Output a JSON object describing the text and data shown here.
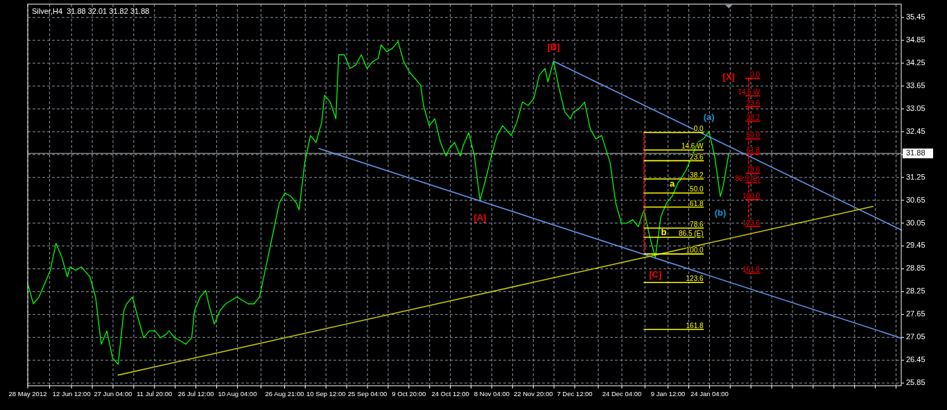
{
  "chart_data": {
    "type": "line",
    "title": "Silver,H4  31.88 32.01 31.82 31.88",
    "xlim": [
      "2012-05-28",
      "2013-04-02"
    ],
    "ylim": [
      25.78,
      35.8
    ],
    "xticks": [
      {
        "value": "2012-05-28",
        "label": "28 May 2012"
      },
      {
        "value": "2012-06-04T18:00",
        "label": null
      },
      {
        "value": "2012-06-12T12:00",
        "label": "12 Jun 12:00"
      },
      {
        "value": "2012-06-19T20:00",
        "label": null
      },
      {
        "value": "2012-06-27T04:00",
        "label": "27 Jun 04:00"
      },
      {
        "value": "2012-07-04T12:00",
        "label": null
      },
      {
        "value": "2012-07-11T20:00",
        "label": "11 Jul 20:00"
      },
      {
        "value": "2012-07-19T04:00",
        "label": null
      },
      {
        "value": "2012-07-26T12:00",
        "label": "26 Jul 12:00"
      },
      {
        "value": "2012-08-02T20:00",
        "label": null
      },
      {
        "value": "2012-08-10T04:00",
        "label": "10 Aug 04:00"
      },
      {
        "value": "2012-08-18T12:00",
        "label": null
      },
      {
        "value": "2012-08-26T21:00",
        "label": "26 Aug 21:00"
      },
      {
        "value": "2012-09-03T04:00",
        "label": null
      },
      {
        "value": "2012-09-10T12:00",
        "label": "10 Sep 12:00"
      },
      {
        "value": "2012-09-17T20:00",
        "label": null
      },
      {
        "value": "2012-09-25T04:00",
        "label": "25 Sep 04:00"
      },
      {
        "value": "2012-10-02T12:00",
        "label": null
      },
      {
        "value": "2012-10-09T20:00",
        "label": "9 Oct 20:00"
      },
      {
        "value": "2012-10-17T04:00",
        "label": null
      },
      {
        "value": "2012-10-24T12:00",
        "label": "24 Oct 12:00"
      },
      {
        "value": "2012-10-31T20:00",
        "label": null
      },
      {
        "value": "2012-11-08T04:00",
        "label": "8 Nov 04:00"
      },
      {
        "value": "2012-11-15T12:00",
        "label": null
      },
      {
        "value": "2012-11-22T20:00",
        "label": "22 Nov 20:00"
      },
      {
        "value": "2012-11-30T04:00",
        "label": null
      },
      {
        "value": "2012-12-07T12:00",
        "label": "7 Dec 12:00"
      },
      {
        "value": "2012-12-15T20:00",
        "label": null
      },
      {
        "value": "2012-12-24T04:00",
        "label": "24 Dec 04:00"
      },
      {
        "value": "2013-01-01T08:00",
        "label": null
      },
      {
        "value": "2013-01-09T12:00",
        "label": "9 Jan 12:00"
      },
      {
        "value": "2013-01-16T20:00",
        "label": null
      },
      {
        "value": "2013-01-24T04:00",
        "label": "24 Jan 04:00"
      },
      {
        "value": "2013-01-31T12:00",
        "label": null
      },
      {
        "value": "2013-02-07T20:00",
        "label": null
      },
      {
        "value": "2013-02-15T04:00",
        "label": null
      },
      {
        "value": "2013-02-22T12:00",
        "label": null
      },
      {
        "value": "2013-03-01T20:00",
        "label": null
      },
      {
        "value": "2013-03-09T04:00",
        "label": null
      },
      {
        "value": "2013-03-16T12:00",
        "label": null
      },
      {
        "value": "2013-03-23T20:00",
        "label": null
      },
      {
        "value": "2013-03-31T04:00",
        "label": null
      }
    ],
    "yticks": [
      25.85,
      26.45,
      27.05,
      27.65,
      28.25,
      28.85,
      29.45,
      30.05,
      30.65,
      31.25,
      {
        "value": 31.85,
        "label": null
      },
      32.45,
      33.05,
      33.65,
      34.25,
      34.85,
      35.45
    ],
    "grid": true,
    "series": [
      {
        "color": "#00ff00",
        "x": [
          "2012-05-28",
          "2012-05-30",
          "2012-06-01",
          "2012-06-03",
          "2012-06-05",
          "2012-06-07",
          "2012-06-09",
          "2012-06-11",
          "2012-06-12",
          "2012-06-14",
          "2012-06-16",
          "2012-06-17",
          "2012-06-19",
          "2012-06-21",
          "2012-06-23",
          "2012-06-25",
          "2012-06-27",
          "2012-06-29",
          "2012-07-01",
          "2012-07-02",
          "2012-07-04",
          "2012-07-06",
          "2012-07-08",
          "2012-07-10",
          "2012-07-12",
          "2012-07-14",
          "2012-07-16",
          "2012-07-17",
          "2012-07-19",
          "2012-07-21",
          "2012-07-23",
          "2012-07-25",
          "2012-07-26",
          "2012-07-28",
          "2012-07-30",
          "2012-07-31",
          "2012-08-02",
          "2012-08-04",
          "2012-08-06",
          "2012-08-08",
          "2012-08-10",
          "2012-08-12",
          "2012-08-14",
          "2012-08-16",
          "2012-08-18",
          "2012-08-20",
          "2012-08-23",
          "2012-08-25",
          "2012-08-27",
          "2012-08-29",
          "2012-08-31",
          "2012-09-01",
          "2012-09-03",
          "2012-09-05",
          "2012-09-07",
          "2012-09-09",
          "2012-09-10",
          "2012-09-12",
          "2012-09-14",
          "2012-09-15",
          "2012-09-17",
          "2012-09-19",
          "2012-09-21",
          "2012-09-23",
          "2012-09-25",
          "2012-09-27",
          "2012-09-29",
          "2012-09-30",
          "2012-10-02",
          "2012-10-04",
          "2012-10-06",
          "2012-10-08",
          "2012-10-10",
          "2012-10-12",
          "2012-10-14",
          "2012-10-15",
          "2012-10-17",
          "2012-10-19",
          "2012-10-21",
          "2012-10-23",
          "2012-10-24",
          "2012-10-26",
          "2012-10-28",
          "2012-10-29",
          "2012-10-31",
          "2012-11-02",
          "2012-11-04",
          "2012-11-06",
          "2012-11-08",
          "2012-11-10",
          "2012-11-12",
          "2012-11-13",
          "2012-11-15",
          "2012-11-17",
          "2012-11-19",
          "2012-11-21",
          "2012-11-23",
          "2012-11-25",
          "2012-11-27",
          "2012-11-28",
          "2012-11-30",
          "2012-12-02",
          "2012-12-04",
          "2012-12-06",
          "2012-12-07",
          "2012-12-09",
          "2012-12-11",
          "2012-12-13",
          "2012-12-15",
          "2012-12-17",
          "2012-12-20",
          "2012-12-22",
          "2012-12-24",
          "2012-12-26",
          "2012-12-28",
          "2012-12-30",
          "2013-01-01",
          "2013-01-03",
          "2013-01-05",
          "2013-01-07",
          "2013-01-09",
          "2013-01-11",
          "2013-01-13",
          "2013-01-14",
          "2013-01-16",
          "2013-01-18",
          "2013-01-20",
          "2013-01-22",
          "2013-01-24",
          "2013-01-26",
          "2013-01-28",
          "2013-01-29",
          "2013-01-31"
        ],
        "values": [
          28.46,
          27.93,
          28.11,
          28.46,
          28.81,
          29.52,
          29.17,
          28.64,
          28.9,
          28.81,
          28.9,
          28.81,
          28.64,
          28.11,
          26.87,
          27.22,
          26.51,
          26.34,
          27.75,
          27.93,
          28.11,
          27.57,
          27.04,
          27.22,
          27.22,
          27.04,
          27.13,
          27.22,
          27.04,
          26.96,
          26.87,
          27.04,
          27.75,
          28.11,
          28.28,
          27.93,
          27.4,
          27.75,
          27.93,
          28.02,
          28.11,
          28.02,
          27.93,
          27.93,
          28.11,
          28.81,
          29.87,
          30.58,
          30.84,
          30.76,
          30.58,
          30.4,
          31.64,
          32.35,
          32.17,
          32.7,
          33.41,
          33.23,
          32.79,
          34.47,
          34.47,
          34.11,
          34.2,
          34.47,
          34.11,
          34.29,
          34.38,
          34.73,
          34.55,
          34.64,
          34.82,
          34.29,
          34.02,
          33.85,
          33.67,
          33.14,
          32.61,
          32.79,
          32.17,
          31.81,
          31.99,
          32.17,
          31.81,
          32.08,
          32.43,
          31.81,
          30.65,
          31.2,
          31.81,
          32.35,
          32.61,
          32.52,
          32.35,
          32.7,
          33.23,
          33.14,
          33.32,
          33.94,
          34.11,
          33.76,
          34.3,
          33.58,
          32.96,
          32.79,
          32.96,
          33.05,
          33.23,
          32.52,
          32.26,
          32.35,
          31.64,
          30.58,
          30.05,
          30.05,
          30.14,
          29.96,
          30.4,
          29.7,
          29.15,
          30.23,
          30.58,
          30.76,
          31.11,
          31.2,
          31.46,
          31.81,
          32.17,
          32.26,
          32.45,
          31.81,
          30.75,
          31.02,
          31.88
        ]
      },
      {
        "color": "#6495ed",
        "x": [
          "2012-11-30",
          "2013-04-02"
        ],
        "values": [
          34.3,
          29.87
        ]
      },
      {
        "color": "#6495ed",
        "x": [
          "2012-09-08",
          "2013-04-02"
        ],
        "values": [
          32.01,
          27.03
        ]
      },
      {
        "color": "#c8c800",
        "x": [
          "2012-06-29",
          "2013-03-23"
        ],
        "values": [
          26.06,
          30.49
        ]
      },
      {
        "color": "#ff0000",
        "line_style": "dashed",
        "x": [
          "2013-01-01",
          "2013-01-01"
        ],
        "values": [
          32.43,
          29.24
        ]
      },
      {
        "color": "#ff0000",
        "line_style": "dashed",
        "x": [
          "2013-02-07",
          "2013-02-07"
        ],
        "values": [
          33.85,
          29.96
        ]
      },
      {
        "color": "#ffff00",
        "x": [
          "2013-01-01",
          "2013-01-22"
        ],
        "values": [
          32.43,
          32.43
        ]
      },
      {
        "color": "#ffff00",
        "x": [
          "2013-01-01",
          "2013-01-22"
        ],
        "values": [
          31.97,
          31.97
        ]
      },
      {
        "color": "#ffff00",
        "x": [
          "2013-01-01",
          "2013-01-22"
        ],
        "values": [
          31.69,
          31.69
        ]
      },
      {
        "color": "#ffff00",
        "x": [
          "2013-01-01",
          "2013-01-22"
        ],
        "values": [
          31.21,
          31.21
        ]
      },
      {
        "color": "#ffff00",
        "x": [
          "2013-01-01",
          "2013-01-22"
        ],
        "values": [
          30.84,
          30.84
        ]
      },
      {
        "color": "#ffff00",
        "x": [
          "2013-01-01",
          "2013-01-22"
        ],
        "values": [
          30.47,
          30.47
        ]
      },
      {
        "color": "#ffff00",
        "x": [
          "2013-01-01",
          "2013-01-22"
        ],
        "values": [
          29.92,
          29.92
        ]
      },
      {
        "color": "#ffff00",
        "x": [
          "2013-01-01",
          "2013-01-22"
        ],
        "values": [
          29.68,
          29.68
        ]
      },
      {
        "color": "#ffff00",
        "x": [
          "2013-01-01",
          "2013-01-22"
        ],
        "values": [
          29.24,
          29.24
        ]
      },
      {
        "color": "#ffff00",
        "x": [
          "2013-01-01",
          "2013-01-22"
        ],
        "values": [
          28.49,
          28.49
        ]
      },
      {
        "color": "#ffff00",
        "x": [
          "2013-01-01",
          "2013-01-22"
        ],
        "values": [
          27.26,
          27.26
        ]
      },
      {
        "color": "#ff0000",
        "x": [
          "2013-02-06",
          "2013-02-11"
        ],
        "values": [
          33.85,
          33.85
        ]
      },
      {
        "color": "#ff0000",
        "x": [
          "2013-02-06",
          "2013-02-11"
        ],
        "values": [
          33.39,
          33.39
        ]
      },
      {
        "color": "#ff0000",
        "x": [
          "2013-02-06",
          "2013-02-11"
        ],
        "values": [
          33.11,
          33.11
        ]
      },
      {
        "color": "#ff0000",
        "x": [
          "2013-02-06",
          "2013-02-11"
        ],
        "values": [
          32.73,
          32.73
        ]
      },
      {
        "color": "#ff0000",
        "x": [
          "2013-02-06",
          "2013-02-11"
        ],
        "values": [
          32.26,
          32.26
        ]
      },
      {
        "color": "#ff0000",
        "x": [
          "2013-02-06",
          "2013-02-11"
        ],
        "values": [
          31.87,
          31.87
        ]
      },
      {
        "color": "#ff0000",
        "x": [
          "2013-02-06",
          "2013-02-11"
        ],
        "values": [
          31.36,
          31.36
        ]
      },
      {
        "color": "#ff0000",
        "x": [
          "2013-02-06",
          "2013-02-11"
        ],
        "values": [
          31.11,
          31.11
        ]
      },
      {
        "color": "#ff0000",
        "x": [
          "2013-02-06",
          "2013-02-11"
        ],
        "values": [
          30.67,
          30.67
        ]
      },
      {
        "color": "#ff0000",
        "x": [
          "2013-02-06",
          "2013-02-11"
        ],
        "values": [
          29.96,
          29.96
        ]
      },
      {
        "color": "#ff0000",
        "x": [
          "2013-02-06",
          "2013-02-11"
        ],
        "values": [
          28.74,
          28.74
        ]
      }
    ],
    "ref_lines": [
      {
        "axis": "y",
        "value": 31.88,
        "label": "31.88",
        "color": "#c0c0c0"
      }
    ],
    "annotations": [
      {
        "text": "[B]",
        "x": "2012-11-30",
        "y": 34.3
      },
      {
        "text": "[A]",
        "x": "2012-11-04",
        "y": 30.65
      },
      {
        "text": "[C]",
        "x": "2013-01-05",
        "y": 29.15
      },
      {
        "text": "(a)",
        "x": "2013-01-24",
        "y": 32.45
      },
      {
        "text": "(b)",
        "x": "2013-01-28",
        "y": 30.75
      },
      "[X]",
      "a",
      "b",
      {
        "text": "0.0",
        "x": "2013-01-22",
        "y": 32.43
      },
      {
        "text": "14.6 W",
        "x": "2013-01-22",
        "y": 31.97
      },
      {
        "text": "23.6",
        "x": "2013-01-22",
        "y": 31.69
      },
      {
        "text": "38.2",
        "x": "2013-01-22",
        "y": 31.21
      },
      {
        "text": "50.0",
        "x": "2013-01-22",
        "y": 30.84
      },
      {
        "text": "61.8",
        "x": "2013-01-22",
        "y": 30.47
      },
      {
        "text": "78.6",
        "x": "2013-01-22",
        "y": 29.92
      },
      {
        "text": "86.5 (E)",
        "x": "2013-01-22",
        "y": 29.68
      },
      {
        "text": "100.0",
        "x": "2013-01-22",
        "y": 29.24
      },
      {
        "text": "123.6",
        "x": "2013-01-22",
        "y": 28.49
      },
      {
        "text": "161.8",
        "x": "2013-01-22",
        "y": 27.26
      },
      {
        "text": "0.0",
        "x": "2013-02-11",
        "y": 33.85
      },
      {
        "text": "14.6 W",
        "x": "2013-02-11",
        "y": 33.39
      },
      {
        "text": "23.6",
        "x": "2013-02-11",
        "y": 33.11
      },
      {
        "text": "38.2",
        "x": "2013-02-11",
        "y": 32.73
      },
      {
        "text": "50.0",
        "x": "2013-02-11",
        "y": 32.26
      },
      {
        "text": "61.8",
        "x": "2013-02-11",
        "y": 31.87
      },
      {
        "text": "78.6",
        "x": "2013-02-11",
        "y": 31.36
      },
      {
        "text": "86.5 (E)",
        "x": "2013-02-11",
        "y": 31.11
      },
      {
        "text": "100.0",
        "x": "2013-02-11",
        "y": 30.67
      },
      {
        "text": "123.6",
        "x": "2013-02-11",
        "y": 29.96
      },
      {
        "text": "161.8",
        "x": "2013-02-11",
        "y": 28.74
      }
    ]
  }
}
